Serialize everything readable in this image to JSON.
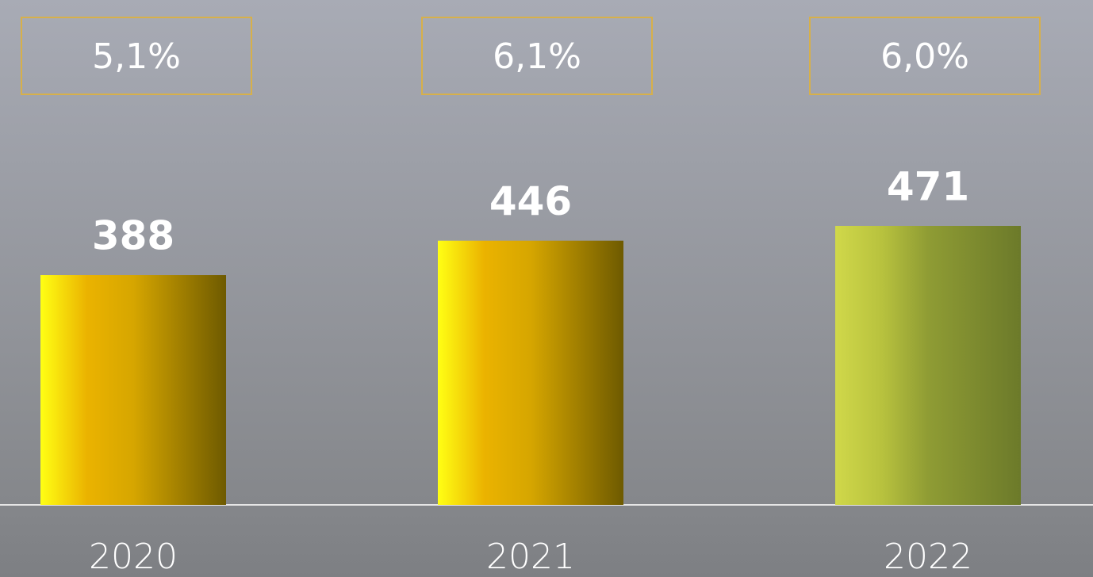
{
  "chart_data": {
    "type": "bar",
    "categories": [
      "2020",
      "2021",
      "2022"
    ],
    "values": [
      388,
      446,
      471
    ],
    "gradients": [
      [
        "#ffff14",
        "#ebb300",
        "#d6a600",
        "#6e5a00"
      ],
      [
        "#ffff14",
        "#ebb300",
        "#d6a600",
        "#6e5a00"
      ],
      [
        "#d0d84a",
        "#b8c23e",
        "#8f9c34",
        "#6c7a2a"
      ]
    ],
    "shares": {
      "values": [
        5.1,
        6.1,
        6.0
      ],
      "value_labels": [
        "5,1%",
        "6,1%",
        "6,0%"
      ],
      "border_color": "#d7b04a"
    }
  }
}
